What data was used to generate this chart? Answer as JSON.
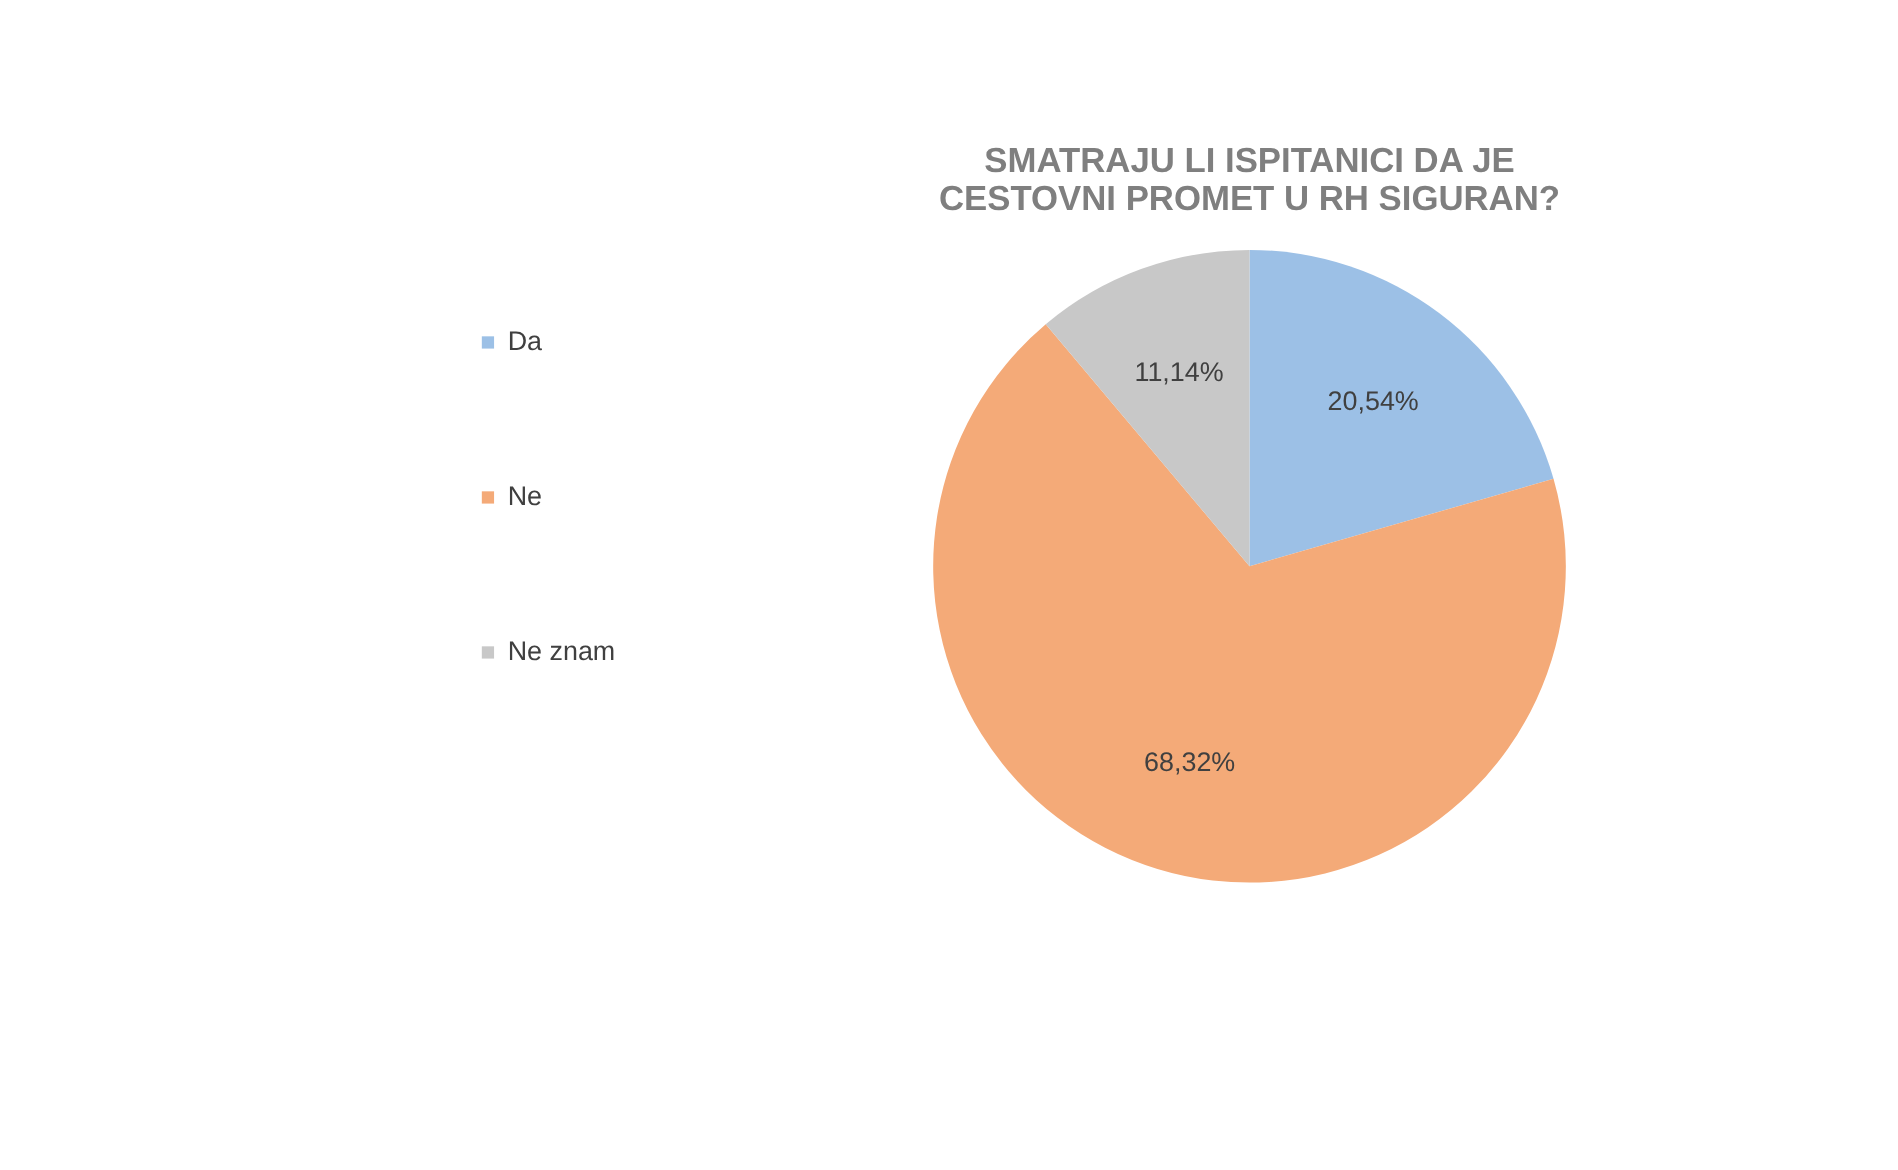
{
  "chart_data": {
    "type": "pie",
    "title": "SMATRAJU LI ISPITANICI DA JE CESTOVNI PROMET U RH SIGURAN?",
    "categories": [
      "Da",
      "Ne",
      "Ne znam"
    ],
    "values": [
      20.54,
      68.32,
      11.14
    ],
    "colors": [
      "#9cc0e6",
      "#f4aa78",
      "#c8c8c8"
    ],
    "value_labels": [
      "20,54%",
      "68,32%",
      "11,14%"
    ],
    "legend": "left"
  }
}
